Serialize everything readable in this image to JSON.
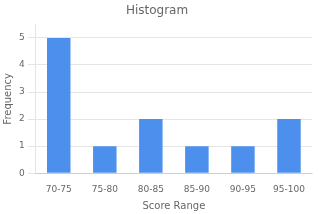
{
  "chart_data": {
    "type": "bar",
    "title": "Histogram",
    "x_label": "Score Range",
    "y_label": "Frequency",
    "categories": [
      "70-75",
      "75-80",
      "80-85",
      "85-90",
      "90-95",
      "95-100"
    ],
    "values": [
      5,
      1,
      2,
      1,
      1,
      2
    ],
    "color": "#4d8fec",
    "ylim": [
      0,
      5.5
    ],
    "yticks": [
      0,
      1,
      2,
      3,
      4,
      5
    ],
    "grid": true
  }
}
